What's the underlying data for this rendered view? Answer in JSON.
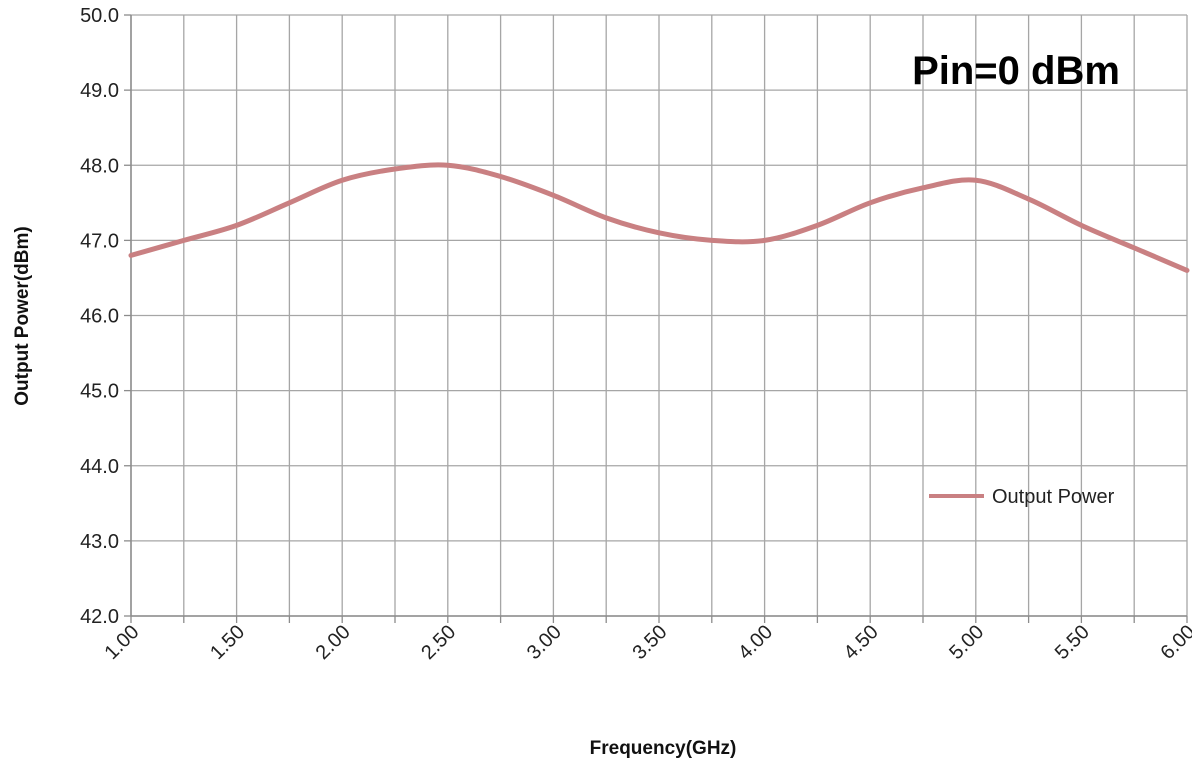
{
  "chart_data": {
    "type": "line",
    "annotation": "Pin=0 dBm",
    "xlabel": "Frequency(GHz)",
    "ylabel": "Output Power(dBm)",
    "xlim": [
      1.0,
      6.0
    ],
    "ylim": [
      42.0,
      50.0
    ],
    "x_ticks": [
      "1.00",
      "1.50",
      "2.00",
      "2.50",
      "3.00",
      "3.50",
      "4.00",
      "4.50",
      "5.00",
      "5.50",
      "6.00"
    ],
    "y_ticks": [
      "42.0",
      "43.0",
      "44.0",
      "45.0",
      "46.0",
      "47.0",
      "48.0",
      "49.0",
      "50.0"
    ],
    "grid": true,
    "legend_position": "right",
    "series": [
      {
        "name": "Output Power",
        "color": "#c98082",
        "x": [
          1.0,
          1.25,
          1.5,
          1.75,
          2.0,
          2.25,
          2.5,
          2.75,
          3.0,
          3.25,
          3.5,
          3.75,
          4.0,
          4.25,
          4.5,
          4.75,
          5.0,
          5.25,
          5.5,
          5.75,
          6.0
        ],
        "y": [
          46.8,
          47.0,
          47.2,
          47.5,
          47.8,
          47.95,
          48.0,
          47.85,
          47.6,
          47.3,
          47.1,
          47.0,
          47.0,
          47.2,
          47.5,
          47.7,
          47.8,
          47.55,
          47.2,
          46.9,
          46.6
        ]
      }
    ]
  }
}
